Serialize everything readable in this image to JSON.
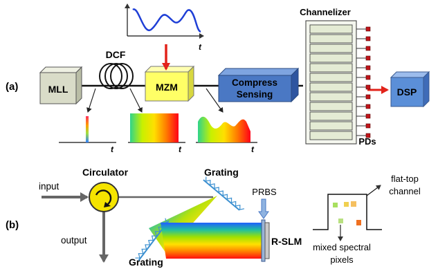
{
  "panel_a": {
    "tag": "(a)",
    "blocks": {
      "mll": "MLL",
      "dcf": "DCF",
      "mzm": "MZM",
      "cs_line1": "Compress",
      "cs_line2": "Sensing",
      "channelizer": "Channelizer",
      "pds": "PDs",
      "dsp": "DSP"
    },
    "axis_t": "t"
  },
  "panel_b": {
    "tag": "(b)",
    "input": "input",
    "output": "output",
    "circulator": "Circulator",
    "grating_top": "Grating",
    "grating_bottom": "Grating",
    "prbs": "PRBS",
    "rslm": "R-SLM",
    "flat_top_1": "flat-top",
    "flat_top_2": "channel",
    "mixed_1": "mixed spectral",
    "mixed_2": "pixels"
  },
  "colors": {
    "mll": "#d9dcc8",
    "mzm": "#ffff66",
    "cs": "#4a78c4",
    "dsp": "#5b8fd8",
    "channel_row": "#e4ebd4",
    "pd_marker": "#c0141a",
    "modulation_arrow": "#e2231a",
    "signal_wave": "#1f3fd6",
    "circulator": "#f5e400",
    "grating": "#3a8fd0"
  },
  "icons": [
    "fiber-coil-icon",
    "circulator-icon"
  ]
}
